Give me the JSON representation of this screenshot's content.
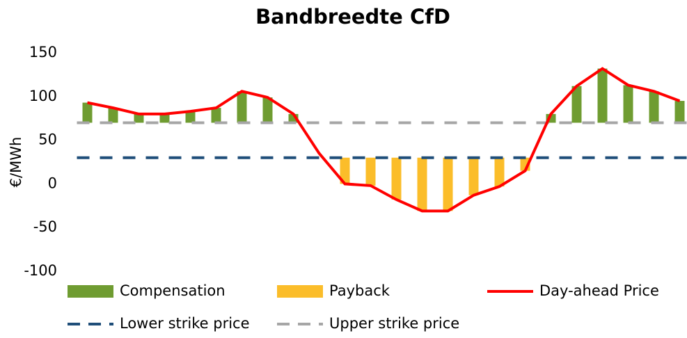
{
  "chart_data": {
    "type": "cfd",
    "title": "Bandbreedte CfD",
    "y_label": "€/MWh",
    "categories": [
      null,
      null,
      null,
      null,
      null,
      null,
      null,
      null,
      null,
      null,
      null,
      null,
      null,
      null,
      null,
      null,
      null,
      null,
      null,
      null,
      null,
      null,
      null,
      null
    ],
    "ylim": [
      -100,
      150
    ],
    "yticks": [
      -100,
      -50,
      0,
      50,
      100,
      150
    ],
    "series": [
      {
        "name": "Compensation",
        "color": "#6f9c31",
        "kind": "bar",
        "base_series": 4,
        "values": [
          23,
          17,
          10,
          10,
          13,
          17,
          36,
          29,
          10,
          null,
          null,
          null,
          null,
          null,
          null,
          null,
          null,
          null,
          10,
          42,
          62,
          43,
          36,
          25
        ]
      },
      {
        "name": "Payback",
        "color": "#fbbd2a",
        "kind": "bar",
        "base_series": 3,
        "values": [
          null,
          null,
          null,
          null,
          null,
          null,
          null,
          null,
          null,
          null,
          -30,
          -32,
          -48,
          -61,
          -61,
          -43,
          -33,
          -15,
          null,
          null,
          null,
          null,
          null,
          null
        ]
      },
      {
        "name": "Day-ahead Price",
        "color": "#ff0000",
        "kind": "line",
        "values": [
          93,
          87,
          80,
          80,
          83,
          87,
          106,
          99,
          80,
          35,
          0,
          -2,
          -18,
          -31,
          -31,
          -13,
          -3,
          15,
          80,
          112,
          132,
          113,
          106,
          95
        ]
      },
      {
        "name": "Lower strike price",
        "color": "#1f4e79",
        "kind": "dash",
        "values": [
          30,
          30,
          30,
          30,
          30,
          30,
          30,
          30,
          30,
          30,
          30,
          30,
          30,
          30,
          30,
          30,
          30,
          30,
          30,
          30,
          30,
          30,
          30,
          30
        ]
      },
      {
        "name": "Upper strike price",
        "color": "#a6a6a6",
        "kind": "dash",
        "values": [
          70,
          70,
          70,
          70,
          70,
          70,
          70,
          70,
          70,
          70,
          70,
          70,
          70,
          70,
          70,
          70,
          70,
          70,
          70,
          70,
          70,
          70,
          70,
          70
        ]
      }
    ],
    "grid": false
  }
}
